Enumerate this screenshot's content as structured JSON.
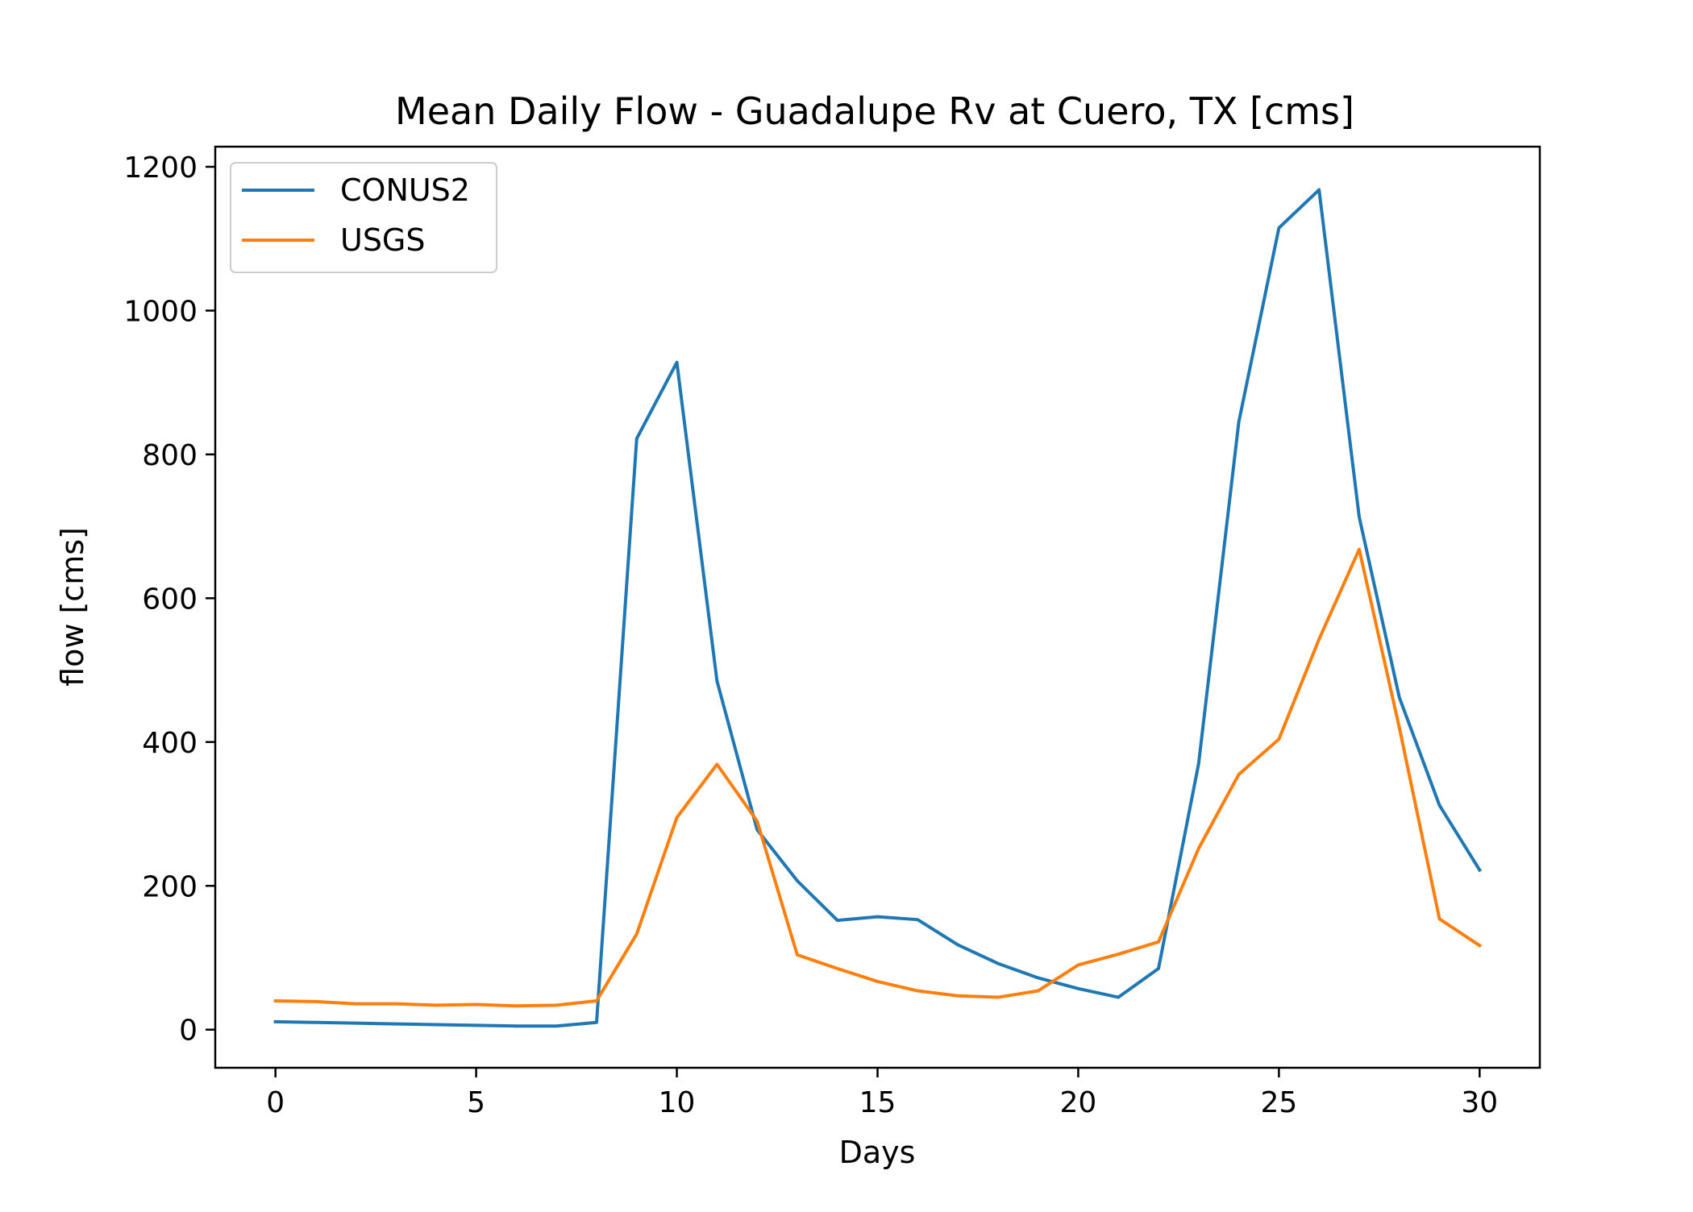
{
  "chart_data": {
    "type": "line",
    "title": "Mean Daily Flow - Guadalupe Rv at Cuero, TX [cms]",
    "xlabel": "Days",
    "ylabel": "flow [cms]",
    "xlim": [
      -1.5,
      31.5
    ],
    "ylim": [
      -53,
      1228
    ],
    "xticks": [
      0,
      5,
      10,
      15,
      20,
      25,
      30
    ],
    "xtick_labels": [
      "0",
      "5",
      "10",
      "15",
      "20",
      "25",
      "30"
    ],
    "yticks": [
      0,
      200,
      400,
      600,
      800,
      1000,
      1200
    ],
    "ytick_labels": [
      "0",
      "200",
      "400",
      "600",
      "800",
      "1000",
      "1200"
    ],
    "grid": false,
    "legend_position": "top-left",
    "x": [
      0,
      1,
      2,
      3,
      4,
      5,
      6,
      7,
      8,
      9,
      10,
      11,
      12,
      13,
      14,
      15,
      16,
      17,
      18,
      19,
      20,
      21,
      22,
      23,
      24,
      25,
      26,
      27,
      28,
      29,
      30
    ],
    "series": [
      {
        "name": "CONUS2",
        "color": "#1f77b4",
        "values": [
          11,
          10,
          9,
          8,
          7,
          6,
          5,
          5,
          10,
          822,
          928,
          485,
          278,
          207,
          152,
          157,
          153,
          118,
          92,
          72,
          57,
          45,
          85,
          370,
          845,
          1115,
          1168,
          713,
          462,
          312,
          222
        ]
      },
      {
        "name": "USGS",
        "color": "#ff7f0e",
        "values": [
          40,
          39,
          36,
          36,
          34,
          35,
          33,
          34,
          40,
          133,
          295,
          369,
          290,
          104,
          85,
          67,
          54,
          47,
          45,
          54,
          90,
          105,
          122,
          252,
          355,
          404,
          543,
          668,
          420,
          154,
          117
        ]
      }
    ]
  }
}
